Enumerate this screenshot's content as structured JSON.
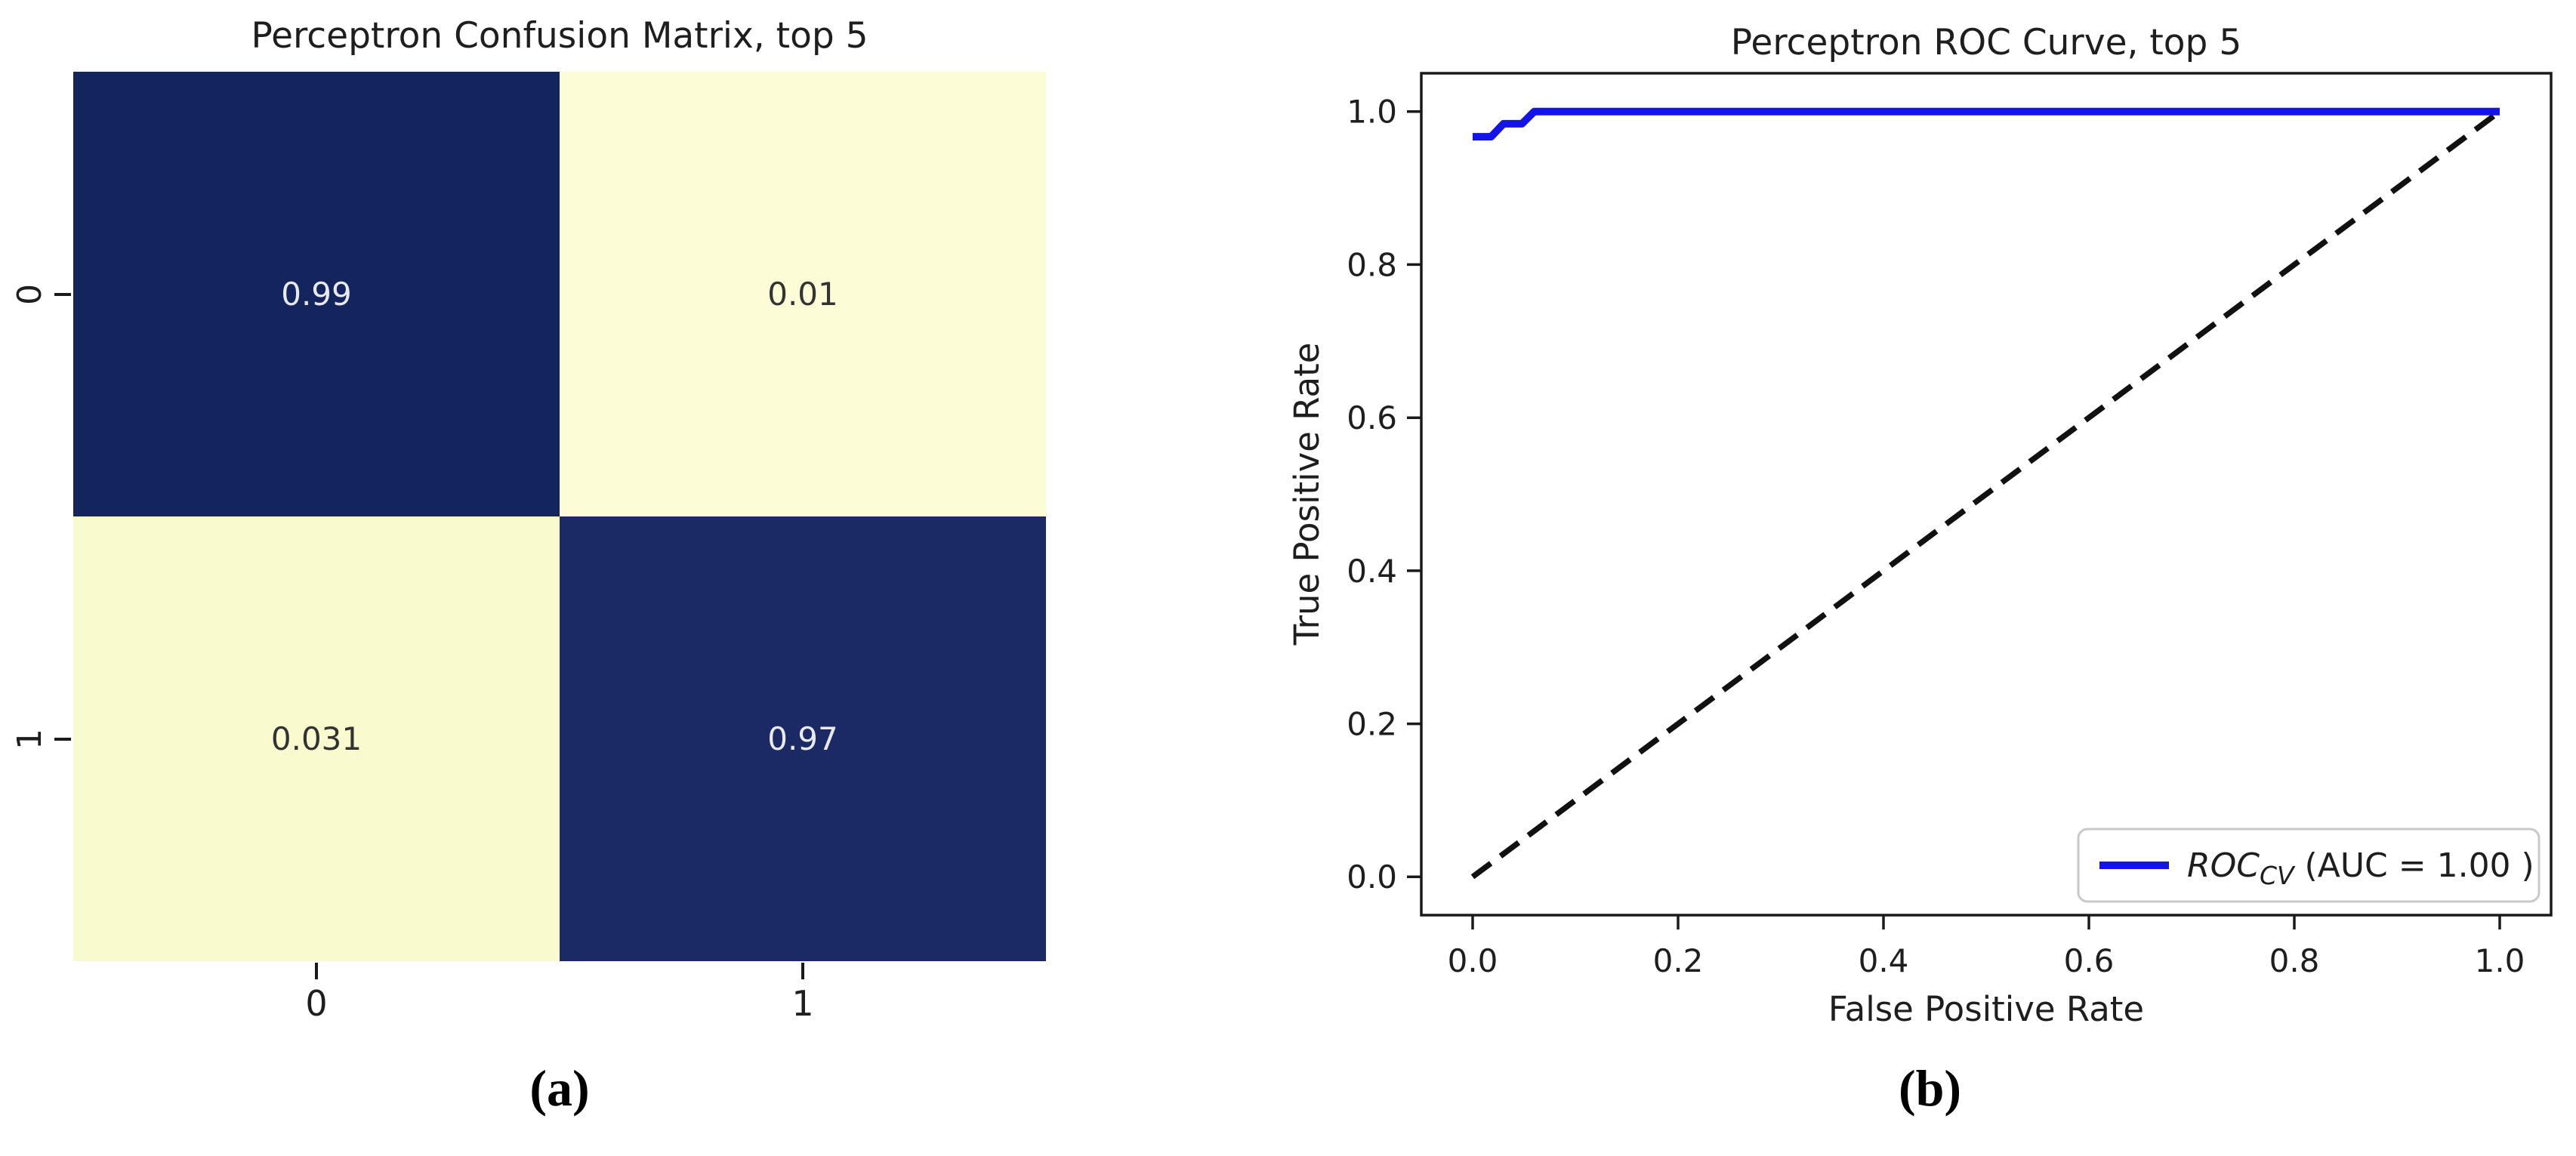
{
  "colors": {
    "navy_high": "#14255d",
    "navy_high2": "#1b2a64",
    "yellow_low": "#fcfdd6",
    "yellow_low2": "#f9fbcf",
    "annot_light": "#e8e9f1",
    "annot_dark": "#333333",
    "roc_blue": "#1414e8",
    "chance_black": "#111111",
    "spine": "#1a1a1a"
  },
  "confusion": {
    "title": "Perceptron Confusion Matrix, top 5",
    "caption": "(a)",
    "x_ticks": [
      "0",
      "1"
    ],
    "y_ticks": [
      "0",
      "1"
    ],
    "cells": [
      {
        "value": "0.99",
        "bg": "#14255d",
        "fg": "#e8e9f1"
      },
      {
        "value": "0.01",
        "bg": "#fcfdd6",
        "fg": "#333333"
      },
      {
        "value": "0.031",
        "bg": "#f9fbcf",
        "fg": "#333333"
      },
      {
        "value": "0.97",
        "bg": "#1b2a64",
        "fg": "#e8e9f1"
      }
    ]
  },
  "roc": {
    "title": "Perceptron ROC Curve, top 5",
    "caption": "(b)",
    "xlabel": "False Positive Rate",
    "ylabel": "True Positive Rate",
    "x_ticks": [
      "0.0",
      "0.2",
      "0.4",
      "0.6",
      "0.8",
      "1.0"
    ],
    "y_ticks": [
      "0.0",
      "0.2",
      "0.4",
      "0.6",
      "0.8",
      "1.0"
    ],
    "legend": {
      "series_name": "ROC",
      "series_subscript": "CV",
      "suffix": " (AUC = 1.00 )"
    }
  },
  "chart_data": [
    {
      "type": "heatmap",
      "title": "Perceptron Confusion Matrix, top 5",
      "x_categories": [
        "0",
        "1"
      ],
      "y_categories": [
        "0",
        "1"
      ],
      "values": [
        [
          0.99,
          0.01
        ],
        [
          0.031,
          0.97
        ]
      ],
      "value_labels": [
        [
          "0.99",
          "0.01"
        ],
        [
          "0.031",
          "0.97"
        ]
      ],
      "colormap": "YlGnBu-like (low=pale yellow, high=dark navy)",
      "color_low": "#fcfdd6",
      "color_high": "#14255d",
      "grid": false,
      "legend_position": "none"
    },
    {
      "type": "line",
      "title": "Perceptron ROC Curve, top 5",
      "xlabel": "False Positive Rate",
      "ylabel": "True Positive Rate",
      "xlim": [
        -0.05,
        1.05
      ],
      "ylim": [
        -0.05,
        1.05
      ],
      "x_ticks": [
        0.0,
        0.2,
        0.4,
        0.6,
        0.8,
        1.0
      ],
      "y_ticks": [
        0.0,
        0.2,
        0.4,
        0.6,
        0.8,
        1.0
      ],
      "grid": false,
      "legend_position": "lower right",
      "series": [
        {
          "name": "ROC_CV (AUC = 1.00 )",
          "color": "#1414e8",
          "style": "solid",
          "points": [
            [
              0.0,
              0.967
            ],
            [
              0.018,
              0.967
            ],
            [
              0.03,
              0.984
            ],
            [
              0.048,
              0.984
            ],
            [
              0.06,
              1.0
            ],
            [
              1.0,
              1.0
            ]
          ]
        },
        {
          "name": "chance-diagonal",
          "color": "#111111",
          "style": "dashed",
          "points": [
            [
              0.0,
              0.0
            ],
            [
              1.0,
              1.0
            ]
          ]
        }
      ]
    }
  ]
}
